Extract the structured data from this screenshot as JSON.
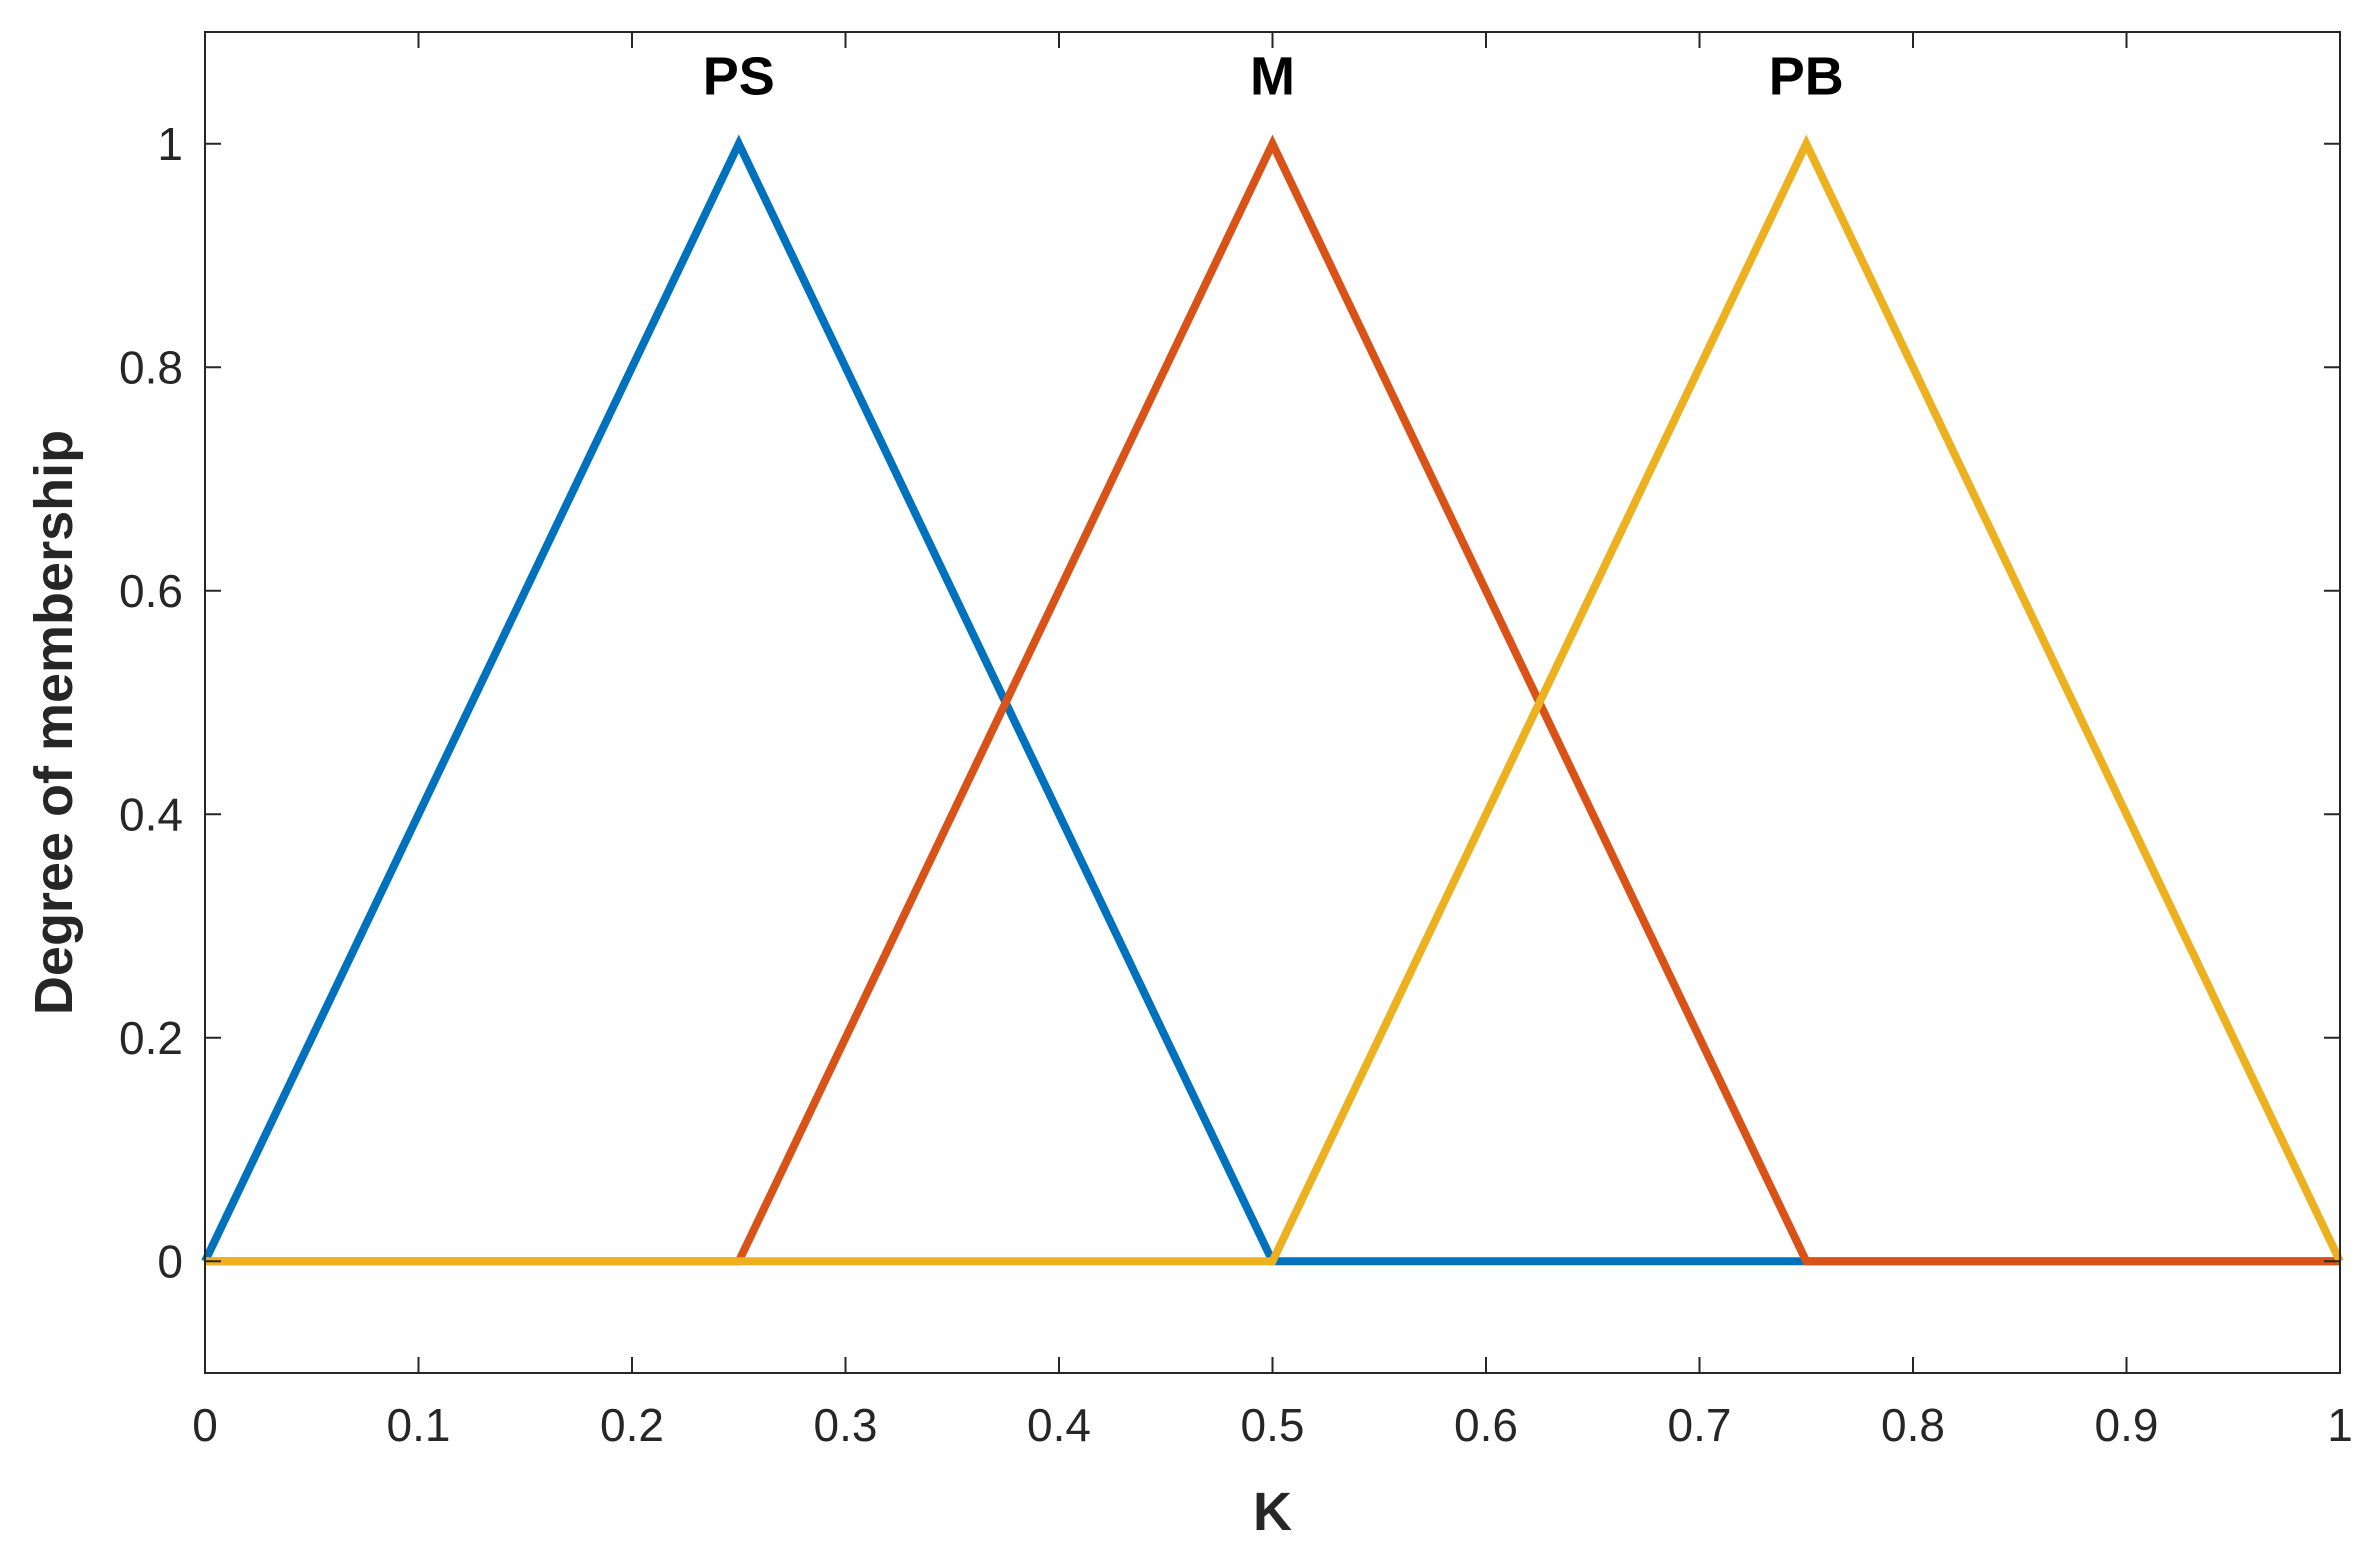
{
  "chart_data": {
    "type": "line",
    "title": "",
    "xlabel": "K",
    "ylabel": "Degree of membership",
    "xlim": [
      0,
      1
    ],
    "ylim": [
      -0.1,
      1.1
    ],
    "x_ticks": [
      0,
      0.1,
      0.2,
      0.3,
      0.4,
      0.5,
      0.6,
      0.7,
      0.8,
      0.9,
      1
    ],
    "x_tick_labels": [
      "0",
      "0.1",
      "0.2",
      "0.3",
      "0.4",
      "0.5",
      "0.6",
      "0.7",
      "0.8",
      "0.9",
      "1"
    ],
    "y_ticks": [
      0,
      0.2,
      0.4,
      0.6,
      0.8,
      1
    ],
    "y_tick_labels": [
      "0",
      "0.2",
      "0.4",
      "0.6",
      "0.8",
      "1"
    ],
    "grid": false,
    "legend": "none",
    "series": [
      {
        "name": "PS",
        "color": "#0072BD",
        "points": [
          [
            0,
            0
          ],
          [
            0.25,
            1
          ],
          [
            0.5,
            0
          ],
          [
            1,
            0
          ]
        ]
      },
      {
        "name": "M",
        "color": "#D95319",
        "points": [
          [
            0,
            0
          ],
          [
            0.25,
            0
          ],
          [
            0.5,
            1
          ],
          [
            0.75,
            0
          ],
          [
            1,
            0
          ]
        ]
      },
      {
        "name": "PB",
        "color": "#EDB120",
        "points": [
          [
            0,
            0
          ],
          [
            0.5,
            0
          ],
          [
            0.75,
            1
          ],
          [
            1,
            0
          ]
        ]
      }
    ],
    "annotations": [
      {
        "text": "PS",
        "x": 0.25,
        "y": 1.06
      },
      {
        "text": "M",
        "x": 0.5,
        "y": 1.06
      },
      {
        "text": "PB",
        "x": 0.75,
        "y": 1.06
      }
    ]
  }
}
